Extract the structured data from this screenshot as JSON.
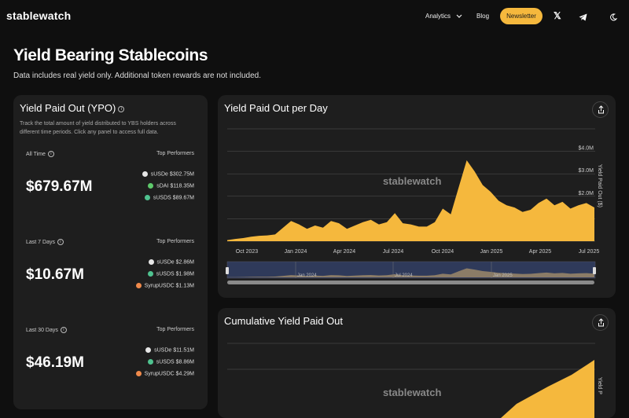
{
  "nav": {
    "logo": "stablewatch",
    "analytics": "Analytics",
    "blog": "Blog",
    "newsletter": "Newsletter",
    "x_icon": "x-logo-icon",
    "telegram_icon": "telegram-icon",
    "theme_icon": "moon-icon"
  },
  "page": {
    "title": "Yield Bearing Stablecoins",
    "subtitle": "Data includes real yield only. Additional token rewards are not included."
  },
  "ypo": {
    "title": "Yield Paid Out (YPO)",
    "description": "Track the total amount of yield distributed to YBS holders across different time periods. Click any panel to access full data.",
    "top_label": "Top Performers",
    "sections": [
      {
        "label": "All Time",
        "value": "$679.67M",
        "performers": [
          {
            "name": "sUSDe",
            "amount": "$302.75M",
            "color": "#e6e6e6"
          },
          {
            "name": "sDAI",
            "amount": "$118.35M",
            "color": "#5ec96b"
          },
          {
            "name": "sUSDS",
            "amount": "$89.67M",
            "color": "#4fc28f"
          }
        ]
      },
      {
        "label": "Last 7 Days",
        "value": "$10.67M",
        "performers": [
          {
            "name": "sUSDe",
            "amount": "$2.86M",
            "color": "#e6e6e6"
          },
          {
            "name": "sUSDS",
            "amount": "$1.98M",
            "color": "#4fc28f"
          },
          {
            "name": "SyrupUSDC",
            "amount": "$1.13M",
            "color": "#f08a4b"
          }
        ]
      },
      {
        "label": "Last 30 Days",
        "value": "$46.19M",
        "performers": [
          {
            "name": "sUSDe",
            "amount": "$11.51M",
            "color": "#e6e6e6"
          },
          {
            "name": "sUSDS",
            "amount": "$8.86M",
            "color": "#4fc28f"
          },
          {
            "name": "SyrupUSDC",
            "amount": "$4.29M",
            "color": "#f08a4b"
          }
        ]
      }
    ]
  },
  "colors": {
    "accent": "#f5b83d",
    "bg": "#0f0f0f",
    "panel": "#1e1e1e",
    "navigator": "#2f3a5a"
  },
  "chart_data": [
    {
      "type": "area",
      "title": "Yield Paid Out per Day",
      "ylabel": "Yield Paid Out ($)",
      "watermark": "stablewatch",
      "x_ticks": [
        "Oct 2023",
        "Jan 2024",
        "Apr 2024",
        "Jul 2024",
        "Oct 2024",
        "Jan 2025",
        "Apr 2025",
        "Jul 2025"
      ],
      "y_ticks": [
        "$2.0M",
        "$3.0M",
        "$4.0M"
      ],
      "ylim": [
        0,
        5000000
      ],
      "series": [
        {
          "values": [
            0.05,
            0.1,
            0.14,
            0.2,
            0.24,
            0.26,
            0.3,
            0.6,
            0.9,
            0.75,
            0.55,
            0.7,
            0.6,
            0.9,
            0.8,
            0.55,
            0.7,
            0.85,
            0.95,
            0.75,
            0.85,
            1.25,
            0.8,
            0.75,
            0.65,
            0.65,
            0.85,
            1.45,
            1.2,
            2.4,
            3.6,
            3.1,
            2.5,
            2.2,
            1.8,
            1.6,
            1.5,
            1.3,
            1.4,
            1.7,
            1.9,
            1.6,
            1.75,
            1.45,
            1.6,
            1.7,
            1.5
          ]
        }
      ],
      "navigator": {
        "x_ticks": [
          "Jan 2024",
          "Jul 2024",
          "Jan 2025"
        ]
      }
    },
    {
      "type": "area",
      "title": "Cumulative Yield Paid Out",
      "ylabel": "Yield P",
      "watermark": "stablewatch"
    }
  ]
}
